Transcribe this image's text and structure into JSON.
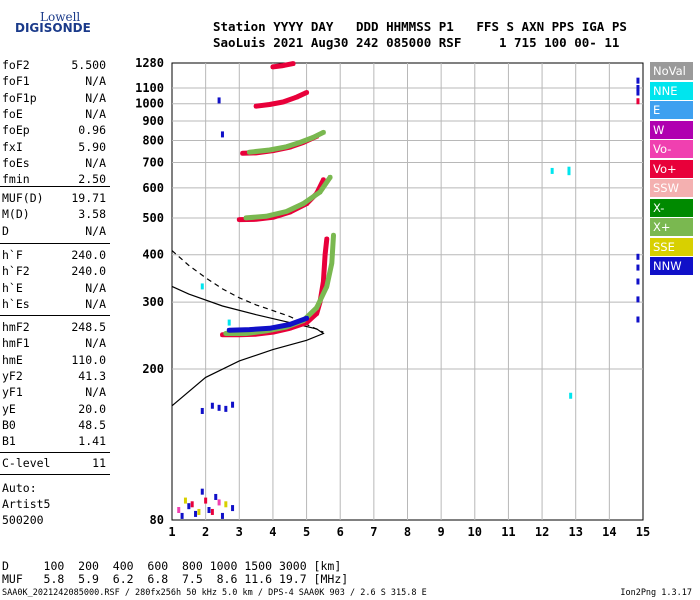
{
  "logo": {
    "line1": "Lowell",
    "line2": "DIGISONDE"
  },
  "header": {
    "line1": "Station YYYY DAY   DDD HHMMSS P1   FFS S AXN PPS IGA PS",
    "line2": "SaoLuis 2021 Aug30 242 085000 RSF     1 715 100 00- 11"
  },
  "params": {
    "group1": [
      {
        "name": "foF2",
        "value": "5.500"
      },
      {
        "name": "foF1",
        "value": "N/A"
      },
      {
        "name": "foF1p",
        "value": "N/A"
      },
      {
        "name": "foE",
        "value": "N/A"
      },
      {
        "name": "foEp",
        "value": "0.96"
      },
      {
        "name": "fxI",
        "value": "5.90"
      },
      {
        "name": "foEs",
        "value": "N/A"
      },
      {
        "name": "fmin",
        "value": "2.50"
      }
    ],
    "group2": [
      {
        "name": "MUF(D)",
        "value": "19.71"
      },
      {
        "name": "M(D)",
        "value": "3.58"
      },
      {
        "name": "D",
        "value": "N/A"
      }
    ],
    "group3": [
      {
        "name": "h`F",
        "value": "240.0"
      },
      {
        "name": "h`F2",
        "value": "240.0"
      },
      {
        "name": "h`E",
        "value": "N/A"
      },
      {
        "name": "h`Es",
        "value": "N/A"
      }
    ],
    "group4": [
      {
        "name": "hmF2",
        "value": "248.5"
      },
      {
        "name": "hmF1",
        "value": "N/A"
      },
      {
        "name": "hmE",
        "value": "110.0"
      },
      {
        "name": "yF2",
        "value": "41.3"
      },
      {
        "name": "yF1",
        "value": "N/A"
      },
      {
        "name": "yE",
        "value": "20.0"
      },
      {
        "name": "B0",
        "value": "48.5"
      },
      {
        "name": "B1",
        "value": "1.41"
      }
    ],
    "group5": [
      {
        "name": "C-level",
        "value": "11"
      }
    ]
  },
  "auto": {
    "line1": "Auto:",
    "line2": "Artist5",
    "line3": "500200"
  },
  "footer": {
    "d_row": "D     100  200  400  600  800 1000 1500 3000 [km]",
    "muf_row": "MUF   5.8  5.9  6.2  6.8  7.5  8.6 11.6 19.7 [MHz]",
    "bottom": "SAA0K_2021242085000.RSF / 280fx256h 50 kHz 5.0 km / DPS-4 SAA0K 903 / 2.6 S 315.8 E",
    "version": "Ion2Png 1.3.17"
  },
  "legend": [
    {
      "label": "NoVal",
      "color": "#9a9a9a"
    },
    {
      "label": "NNE",
      "color": "#00e5ee"
    },
    {
      "label": "E",
      "color": "#3ea0f0"
    },
    {
      "label": "W",
      "color": "#b000b0"
    },
    {
      "label": "Vo-",
      "color": "#f040b0"
    },
    {
      "label": "Vo+",
      "color": "#e8003a"
    },
    {
      "label": "SSW",
      "color": "#f4b0b0"
    },
    {
      "label": "X-",
      "color": "#008a00"
    },
    {
      "label": "X+",
      "color": "#7ab850"
    },
    {
      "label": "SSE",
      "color": "#d8d000"
    },
    {
      "label": "NNW",
      "color": "#1010c8"
    }
  ],
  "chart_data": {
    "type": "scatter",
    "xlabel": "",
    "ylabel": "",
    "x_ticks": [
      "1",
      "2",
      "3",
      "4",
      "5",
      "6",
      "7",
      "8",
      "9",
      "10",
      "11",
      "12",
      "13",
      "14",
      "15"
    ],
    "y_ticks": [
      "80",
      "200",
      "300",
      "400",
      "500",
      "600",
      "700",
      "800",
      "900",
      "1000",
      "1100",
      "1280"
    ],
    "xlim": [
      1,
      15
    ],
    "ylim": [
      80,
      1280
    ],
    "y_scale": "log",
    "grid": true,
    "traces": [
      {
        "name": "",
        "color": "#e8003a",
        "points": [
          [
            2.5,
            246
          ],
          [
            3.0,
            246
          ],
          [
            3.5,
            247
          ],
          [
            4.0,
            250
          ],
          [
            4.5,
            256
          ],
          [
            5.0,
            265
          ],
          [
            5.3,
            280
          ],
          [
            5.4,
            300
          ],
          [
            5.5,
            340
          ],
          [
            5.55,
            400
          ],
          [
            5.6,
            440
          ]
        ]
      },
      {
        "name": "",
        "color": "#7ab850",
        "points": [
          [
            2.6,
            248
          ],
          [
            3.2,
            248
          ],
          [
            3.8,
            252
          ],
          [
            4.4,
            258
          ],
          [
            4.9,
            268
          ],
          [
            5.3,
            290
          ],
          [
            5.6,
            330
          ],
          [
            5.75,
            380
          ],
          [
            5.8,
            450
          ]
        ]
      },
      {
        "name": "",
        "color": "#1010c8",
        "points": [
          [
            2.7,
            253
          ],
          [
            3.3,
            254
          ],
          [
            3.9,
            256
          ],
          [
            4.5,
            262
          ],
          [
            5.0,
            272
          ]
        ]
      },
      {
        "name": "",
        "color": "#e8003a",
        "points": [
          [
            3.0,
            495
          ],
          [
            3.5,
            496
          ],
          [
            4.0,
            502
          ],
          [
            4.5,
            518
          ],
          [
            5.0,
            545
          ],
          [
            5.3,
            580
          ],
          [
            5.5,
            630
          ]
        ]
      },
      {
        "name": "",
        "color": "#7ab850",
        "points": [
          [
            3.2,
            500
          ],
          [
            3.8,
            505
          ],
          [
            4.4,
            520
          ],
          [
            4.9,
            545
          ],
          [
            5.4,
            585
          ],
          [
            5.7,
            640
          ]
        ]
      },
      {
        "name": "",
        "color": "#e8003a",
        "points": [
          [
            3.1,
            740
          ],
          [
            3.5,
            742
          ],
          [
            4.0,
            752
          ],
          [
            4.5,
            768
          ],
          [
            4.9,
            790
          ],
          [
            5.3,
            820
          ]
        ]
      },
      {
        "name": "",
        "color": "#7ab850",
        "points": [
          [
            3.3,
            745
          ],
          [
            3.9,
            755
          ],
          [
            4.4,
            770
          ],
          [
            4.8,
            790
          ],
          [
            5.2,
            815
          ],
          [
            5.5,
            840
          ]
        ]
      },
      {
        "name": "",
        "color": "#e8003a",
        "points": [
          [
            3.5,
            985
          ],
          [
            3.9,
            995
          ],
          [
            4.3,
            1010
          ],
          [
            4.7,
            1040
          ],
          [
            5.0,
            1070
          ]
        ]
      },
      {
        "name": "",
        "color": "#e8003a",
        "points": [
          [
            4.0,
            1250
          ],
          [
            4.3,
            1260
          ],
          [
            4.6,
            1275
          ]
        ]
      }
    ],
    "scatter": [
      {
        "color": "#1010c8",
        "points": [
          [
            1.3,
            82
          ],
          [
            1.5,
            87
          ],
          [
            1.9,
            95
          ],
          [
            2.1,
            85
          ],
          [
            2.3,
            92
          ],
          [
            2.5,
            82
          ],
          [
            2.8,
            86
          ],
          [
            1.7,
            83
          ]
        ]
      },
      {
        "color": "#e8003a",
        "points": [
          [
            1.6,
            88
          ],
          [
            2.0,
            90
          ],
          [
            2.2,
            84
          ]
        ]
      },
      {
        "color": "#d8d000",
        "points": [
          [
            1.4,
            90
          ],
          [
            1.8,
            84
          ],
          [
            2.6,
            88
          ]
        ]
      },
      {
        "color": "#f040b0",
        "points": [
          [
            2.4,
            89
          ],
          [
            1.2,
            85
          ]
        ]
      },
      {
        "color": "#1010c8",
        "points": [
          [
            2.2,
            160
          ],
          [
            2.4,
            158
          ],
          [
            2.6,
            157
          ],
          [
            2.8,
            161
          ],
          [
            1.9,
            155
          ]
        ]
      },
      {
        "color": "#1010c8",
        "points": [
          [
            2.4,
            1020
          ],
          [
            2.5,
            830
          ]
        ]
      },
      {
        "color": "#00e5ee",
        "points": [
          [
            2.7,
            265
          ],
          [
            12.3,
            665
          ],
          [
            12.8,
            660
          ],
          [
            12.8,
            670
          ],
          [
            12.85,
            170
          ],
          [
            1.9,
            330
          ]
        ]
      },
      {
        "color": "#1010c8",
        "points": [
          [
            14.85,
            1150
          ],
          [
            14.85,
            1100
          ],
          [
            14.85,
            1070
          ],
          [
            14.85,
            395
          ],
          [
            14.85,
            370
          ],
          [
            14.85,
            340
          ],
          [
            14.85,
            305
          ],
          [
            14.85,
            270
          ]
        ]
      },
      {
        "color": "#e8003a",
        "points": [
          [
            14.85,
            1015
          ]
        ]
      }
    ],
    "profile_solid": [
      [
        1.0,
        160
      ],
      [
        2.0,
        190
      ],
      [
        3.0,
        210
      ],
      [
        4.0,
        225
      ],
      [
        5.0,
        238
      ],
      [
        5.5,
        248
      ],
      [
        5.3,
        255
      ],
      [
        4.5,
        265
      ],
      [
        3.5,
        278
      ],
      [
        2.5,
        293
      ],
      [
        1.5,
        315
      ],
      [
        1.0,
        330
      ]
    ],
    "profile_dashed": [
      [
        1.0,
        410
      ],
      [
        1.5,
        375
      ],
      [
        2.0,
        348
      ],
      [
        2.5,
        325
      ],
      [
        3.0,
        308
      ],
      [
        3.5,
        295
      ],
      [
        4.0,
        285
      ],
      [
        4.5,
        275
      ],
      [
        5.0,
        262
      ],
      [
        5.5,
        250
      ]
    ]
  }
}
